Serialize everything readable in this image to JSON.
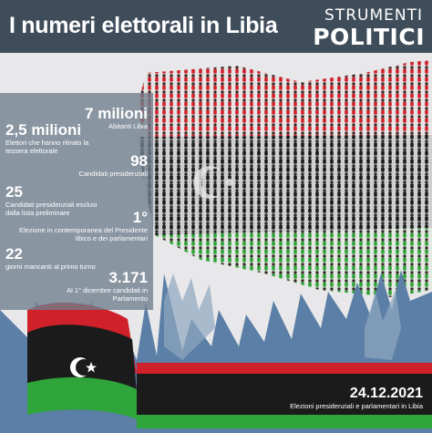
{
  "header": {
    "title": "I numeri elettorali in Libia",
    "logo_line1": "STRUMENTI",
    "logo_line2": "POLITICI"
  },
  "stats": [
    {
      "value": "7 milioni",
      "label": "Abitanti Libia"
    },
    {
      "value": "2,5 milioni",
      "label": "Elettori che hanno ritirato la tessera elettorale"
    },
    {
      "value": "98",
      "label": "Candidati presidenziali"
    },
    {
      "value": "25",
      "label": "Candidati presidenziali esclusi dalla lista preliminare"
    },
    {
      "value": "1°",
      "label": "Elezione in contemporanea del Presidente libico e dei parlamentari"
    },
    {
      "value": "22",
      "label": "giorni mancanti al primo turno"
    },
    {
      "value": "3.171",
      "label": "Al 1° dicembre candidati in Parlamento"
    }
  ],
  "footer": {
    "date": "24.12.2021",
    "subtitle": "Elezioni presidenziali e parlamentari in Libia"
  },
  "colors": {
    "header_bg": "#3f4d5b",
    "flag_red": "#d0202a",
    "flag_black": "#1b1b1b",
    "flag_green": "#2fa43a",
    "hands_blue": "#5b7fa6",
    "panel": "#6e7d8c"
  }
}
